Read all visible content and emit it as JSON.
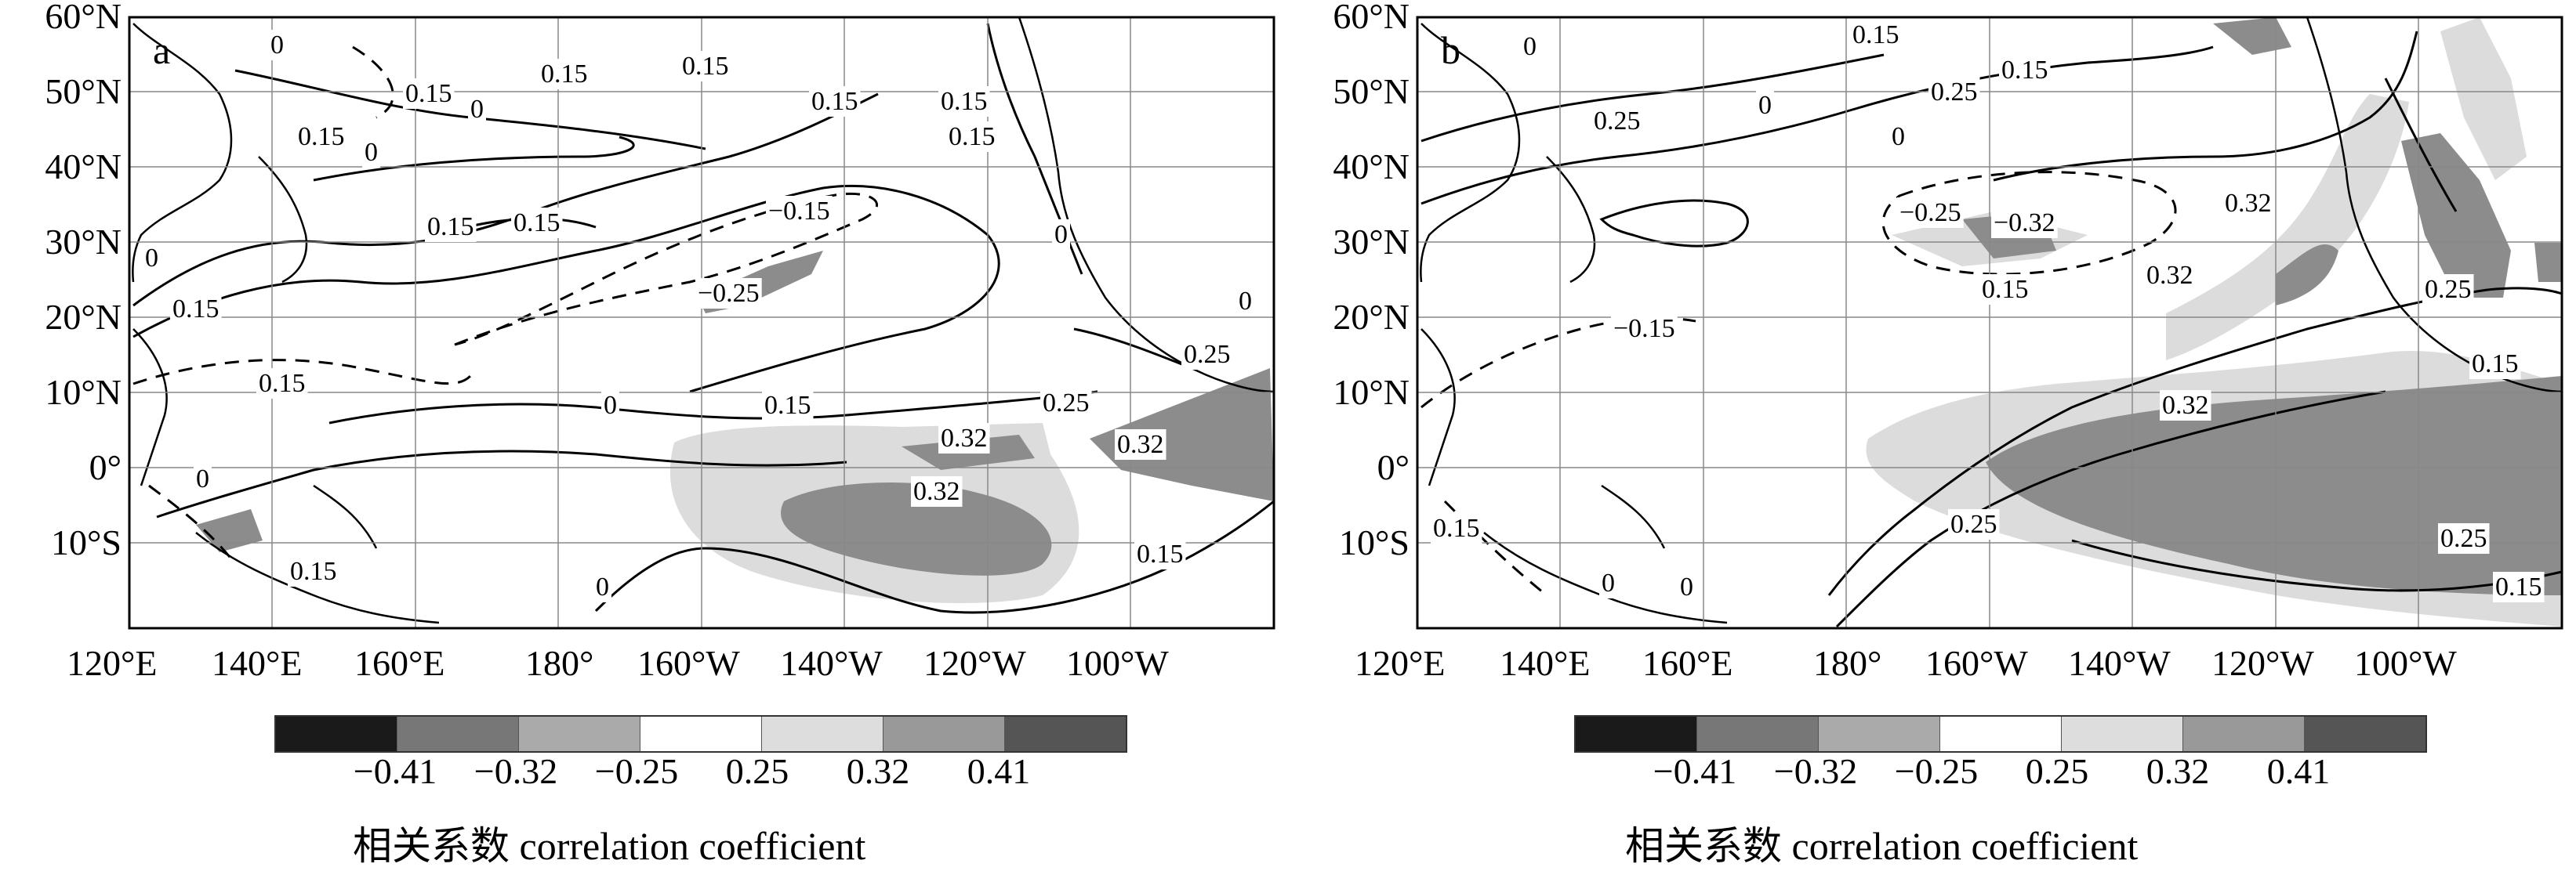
{
  "lat_ticks": [
    "60°N",
    "50°N",
    "40°N",
    "30°N",
    "20°N",
    "10°N",
    "0°",
    "10°S"
  ],
  "lon_ticks": [
    "120°E",
    "140°E",
    "160°E",
    "180°",
    "160°W",
    "140°W",
    "120°W",
    "100°W"
  ],
  "colorbar": {
    "colors": [
      "#1a1a1a",
      "#777777",
      "#aaaaaa",
      "#ffffff",
      "#dddddd",
      "#999999",
      "#555555"
    ],
    "tick_labels": [
      "−0.41",
      "−0.32",
      "−0.25",
      "0.25",
      "0.32",
      "0.41"
    ],
    "label": "相关系数  correlation coefficient"
  },
  "shade": {
    "light": "#dcdcdc",
    "dark": "#8c8c8c"
  },
  "panels": [
    {
      "id": "a",
      "letter": "a",
      "contour_labels": [
        "0",
        "0.15",
        "0.15",
        "0.15",
        "0.15",
        "0.15",
        "0",
        "0.15",
        "0",
        "0.15",
        "0.15",
        "−0.15",
        "−0.25",
        "0.15",
        "0.15",
        "0",
        "0.15",
        "0.25",
        "0.25",
        "0.32",
        "0.32",
        "0.32",
        "0",
        "0.15",
        "0",
        "0.15",
        "0",
        "0.15",
        "0",
        "0"
      ]
    },
    {
      "id": "b",
      "letter": "b",
      "contour_labels": [
        "0.15",
        "0.25",
        "0.15",
        "0.25",
        "0",
        "0",
        "−0.25",
        "−0.32",
        "0.15",
        "0.32",
        "0.32",
        "0.25",
        "0.15",
        "−0.15",
        "0.32",
        "0.25",
        "0.25",
        "0.15",
        "0.15",
        "0",
        "0",
        "0"
      ]
    }
  ]
}
